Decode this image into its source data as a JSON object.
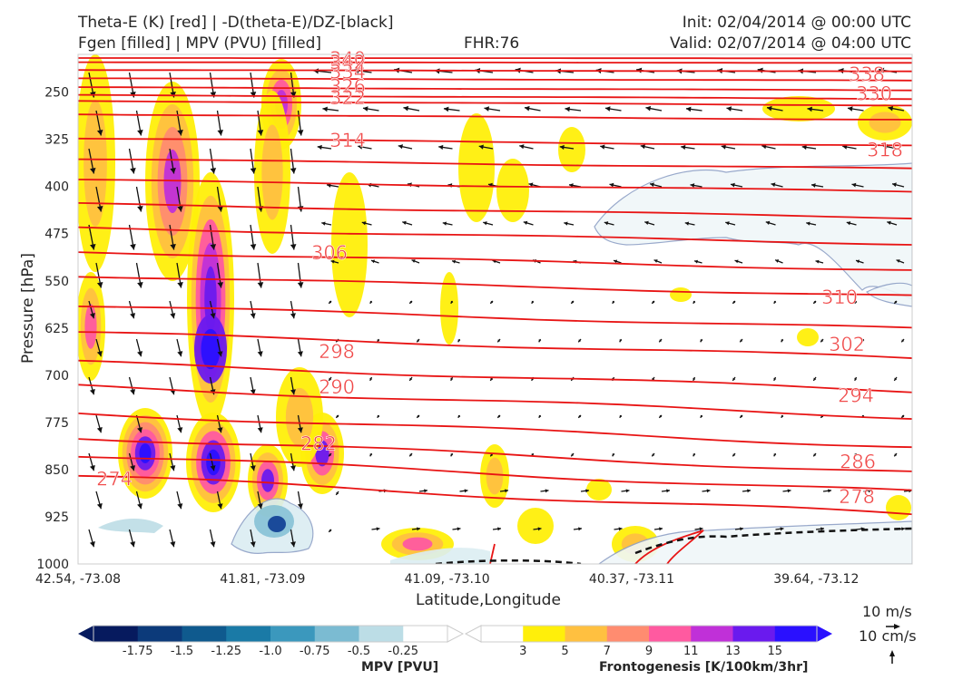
{
  "header": {
    "title_left_1": "Theta-E (K) [red] | -D(theta-E)/DZ-[black]",
    "title_left_2": "Fgen [filled] | MPV (PVU) [filled]",
    "fhr": "FHR:76",
    "init": "Init: 02/04/2014 @ 00:00 UTC",
    "valid": "Valid: 02/07/2014 @ 04:00 UTC"
  },
  "chart_data": {
    "type": "contour",
    "xlabel": "Latitude,Longitude",
    "ylabel": "Pressure [hPa]",
    "y_scale": "linear-inverted",
    "ylim": [
      1000,
      190
    ],
    "x_ticks": [
      "42.54, -73.08",
      "41.81, -73.09",
      "41.09, -73.10",
      "40.37, -73.11",
      "39.64, -73.12"
    ],
    "y_ticks": [
      250,
      325,
      400,
      475,
      550,
      625,
      700,
      775,
      850,
      925,
      1000
    ],
    "theta_e_contour_labels": [
      {
        "value": 340,
        "p": 197
      },
      {
        "value": 342,
        "p": 203
      },
      {
        "value": 334,
        "p": 218
      },
      {
        "value": 326,
        "p": 241
      },
      {
        "value": 322,
        "p": 259
      },
      {
        "value": 314,
        "p": 327
      },
      {
        "value": 306,
        "p": 506
      },
      {
        "value": 298,
        "p": 663
      },
      {
        "value": 290,
        "p": 719
      },
      {
        "value": 282,
        "p": 809
      },
      {
        "value": 274,
        "p": 865
      },
      {
        "value": 338,
        "p": 222
      },
      {
        "value": 330,
        "p": 253
      },
      {
        "value": 318,
        "p": 342
      },
      {
        "value": 310,
        "p": 576
      },
      {
        "value": 302,
        "p": 651
      },
      {
        "value": 294,
        "p": 733
      },
      {
        "value": 286,
        "p": 838
      },
      {
        "value": 278,
        "p": 893
      }
    ],
    "mpv_colorbar": {
      "label": "MPV [PVU]",
      "ticks": [
        "-1.75",
        "-1.5",
        "-1.25",
        "-1.0",
        "-0.75",
        "-0.5",
        "-0.25"
      ],
      "colors": [
        "#061a5e",
        "#0c3a7a",
        "#0f5a8e",
        "#1a7aa6",
        "#3b98bd",
        "#7bbbd2",
        "#bcdde6",
        "#ffffff"
      ]
    },
    "fgen_colorbar": {
      "label": "Frontogenesis [K/100km/3hr]",
      "ticks": [
        "3",
        "5",
        "7",
        "9",
        "11",
        "13",
        "15"
      ],
      "colors": [
        "#ffffff",
        "#ffef0a",
        "#ffc040",
        "#ff8c70",
        "#ff5aa0",
        "#c030d8",
        "#6a1aee",
        "#2a10ff"
      ]
    },
    "vector_keys": [
      "10 m/s",
      "10 cm/s"
    ]
  }
}
